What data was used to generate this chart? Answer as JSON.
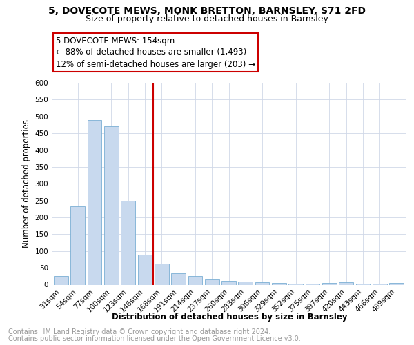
{
  "title1": "5, DOVECOTE MEWS, MONK BRETTON, BARNSLEY, S71 2FD",
  "title2": "Size of property relative to detached houses in Barnsley",
  "xlabel": "Distribution of detached houses by size in Barnsley",
  "ylabel": "Number of detached properties",
  "categories": [
    "31sqm",
    "54sqm",
    "77sqm",
    "100sqm",
    "123sqm",
    "146sqm",
    "168sqm",
    "191sqm",
    "214sqm",
    "237sqm",
    "260sqm",
    "283sqm",
    "306sqm",
    "329sqm",
    "352sqm",
    "375sqm",
    "397sqm",
    "420sqm",
    "443sqm",
    "466sqm",
    "489sqm"
  ],
  "values": [
    25,
    233,
    490,
    470,
    250,
    90,
    62,
    33,
    25,
    15,
    12,
    10,
    8,
    5,
    4,
    4,
    5,
    8,
    4,
    4,
    5
  ],
  "bar_color": "#c8d9ee",
  "bar_edge_color": "#7aafd4",
  "annotation_title": "5 DOVECOTE MEWS: 154sqm",
  "annotation_line1": "← 88% of detached houses are smaller (1,493)",
  "annotation_line2": "12% of semi-detached houses are larger (203) →",
  "annotation_box_color": "#ffffff",
  "annotation_box_edge": "#cc0000",
  "red_line_color": "#cc0000",
  "footer1": "Contains HM Land Registry data © Crown copyright and database right 2024.",
  "footer2": "Contains public sector information licensed under the Open Government Licence v3.0.",
  "ylim": [
    0,
    600
  ],
  "yticks": [
    0,
    50,
    100,
    150,
    200,
    250,
    300,
    350,
    400,
    450,
    500,
    550,
    600
  ],
  "bg_color": "#ffffff",
  "grid_color": "#d0d8e8",
  "title1_fontsize": 10,
  "title2_fontsize": 9,
  "axis_label_fontsize": 8.5,
  "tick_fontsize": 7.5,
  "footer_fontsize": 7,
  "annot_fontsize": 8.5
}
